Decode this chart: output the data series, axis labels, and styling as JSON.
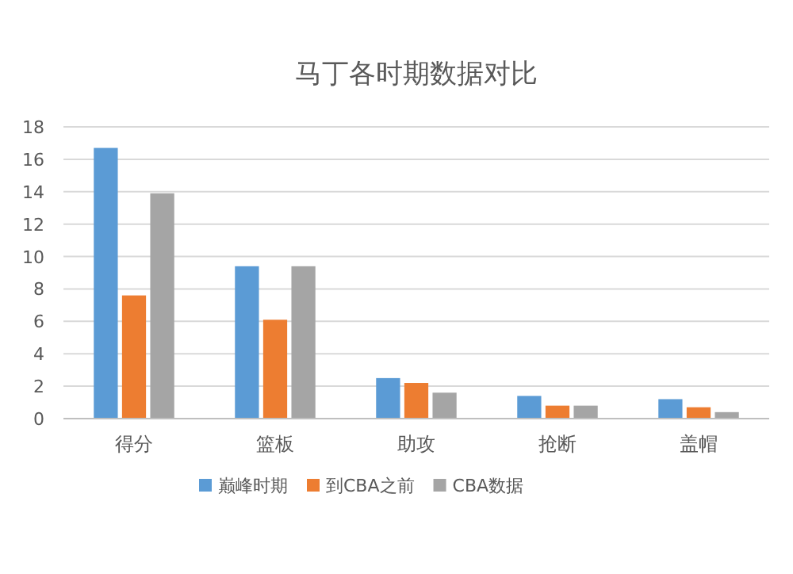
{
  "chart_data": {
    "type": "bar",
    "title": "马丁各时期数据对比",
    "categories": [
      "得分",
      "篮板",
      "助攻",
      "抢断",
      "盖帽"
    ],
    "series": [
      {
        "name": "巅峰时期",
        "color": "#5b9bd5",
        "values": [
          16.7,
          9.4,
          2.5,
          1.4,
          1.2
        ]
      },
      {
        "name": "到CBA之前",
        "color": "#ed7d31",
        "values": [
          7.6,
          6.1,
          2.2,
          0.8,
          0.7
        ]
      },
      {
        "name": "CBA数据",
        "color": "#a5a5a5",
        "values": [
          13.9,
          9.4,
          1.6,
          0.8,
          0.4
        ]
      }
    ],
    "ylim": [
      0,
      18
    ],
    "yticks": [
      0,
      2,
      4,
      6,
      8,
      10,
      12,
      14,
      16,
      18
    ],
    "grid": "y",
    "legend": "bottom"
  }
}
